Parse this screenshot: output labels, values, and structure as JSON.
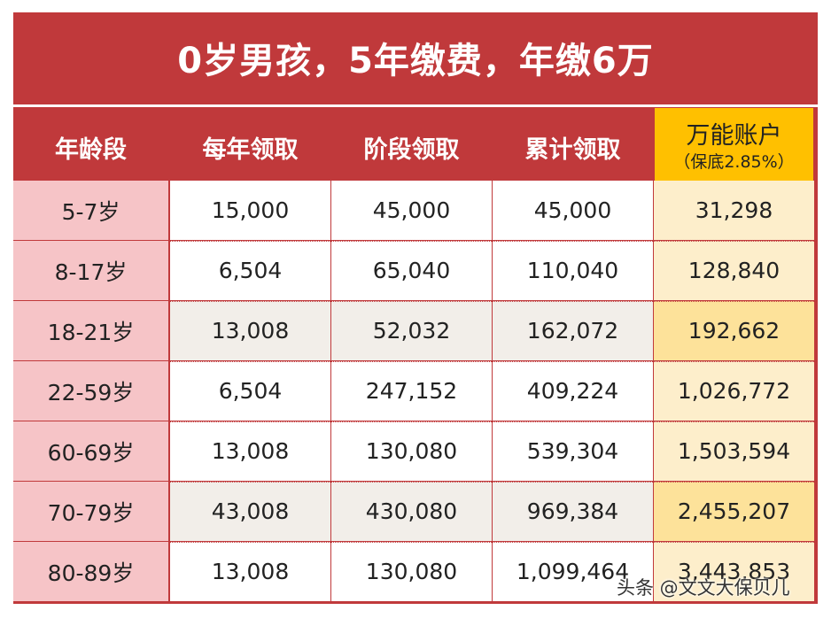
{
  "title": "0岁男孩，5年缴费，年缴6万",
  "headers": {
    "age": "年龄段",
    "annual": "每年领取",
    "stage": "阶段领取",
    "cumulative": "累计领取",
    "universal": "万能账户",
    "universal_note": "（保底2.85%）"
  },
  "rows": [
    {
      "age": "5-7岁",
      "annual": "15,000",
      "stage": "45,000",
      "cumulative": "45,000",
      "universal": "31,298"
    },
    {
      "age": "8-17岁",
      "annual": "6,504",
      "stage": "65,040",
      "cumulative": "110,040",
      "universal": "128,840"
    },
    {
      "age": "18-21岁",
      "annual": "13,008",
      "stage": "52,032",
      "cumulative": "162,072",
      "universal": "192,662"
    },
    {
      "age": "22-59岁",
      "annual": "6,504",
      "stage": "247,152",
      "cumulative": "409,224",
      "universal": "1,026,772"
    },
    {
      "age": "60-69岁",
      "annual": "13,008",
      "stage": "130,080",
      "cumulative": "539,304",
      "universal": "1,503,594"
    },
    {
      "age": "70-79岁",
      "annual": "43,008",
      "stage": "430,080",
      "cumulative": "969,384",
      "universal": "2,455,207"
    },
    {
      "age": "80-89岁",
      "annual": "13,008",
      "stage": "130,080",
      "cumulative": "1,099,464",
      "universal": "3,443,853"
    }
  ],
  "watermark": "头条 @文文大保贝儿",
  "colors": {
    "frame_red": "#c0393b",
    "header_gold": "#ffc000",
    "age_pink": "#f6c4c7",
    "row_gray": "#f2eee9",
    "universal_cream": "#fdeecb",
    "universal_gold": "#fde29a"
  }
}
